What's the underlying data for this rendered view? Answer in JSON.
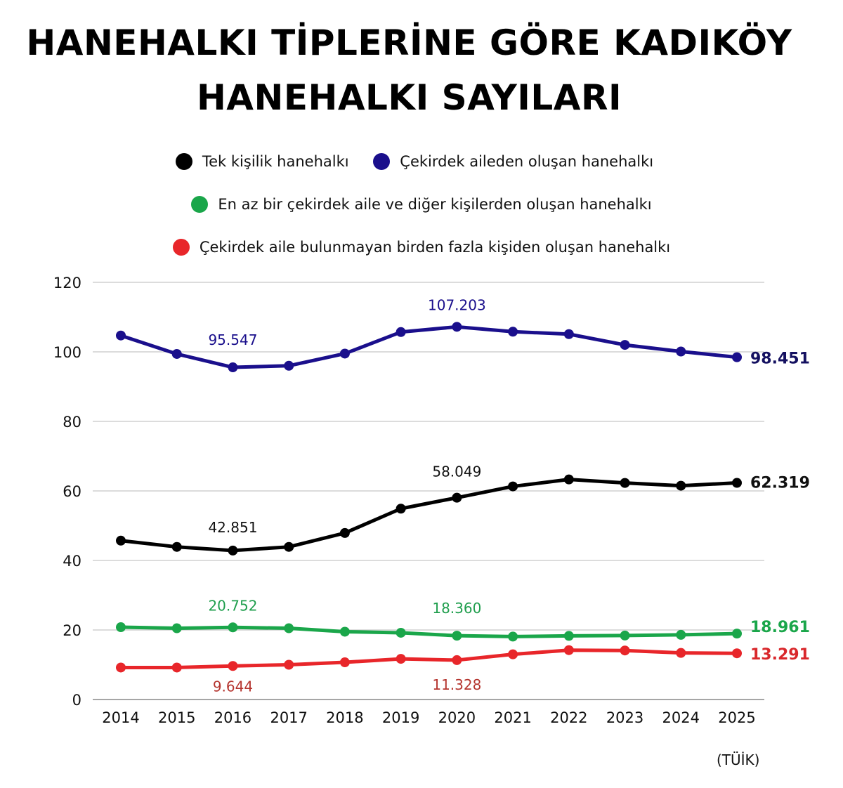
{
  "title_line1": "HANEHALKI TİPLERİNE GÖRE KADIKÖY",
  "title_line2": "HANEHALKI SAYILARI",
  "source": "(TÜİK)",
  "chart_data": {
    "type": "line",
    "title": "HANEHALKI TİPLERİNE GÖRE KADIKÖY HANEHALKI SAYILARI",
    "xlabel": "",
    "ylabel": "",
    "x": [
      2014,
      2015,
      2016,
      2017,
      2018,
      2019,
      2020,
      2021,
      2022,
      2023,
      2024,
      2025
    ],
    "y_ticks": [
      0,
      20,
      40,
      60,
      80,
      100,
      120
    ],
    "ylim": [
      0,
      120
    ],
    "grid": "horizontal",
    "legend_position": "top",
    "series": [
      {
        "name": "Tek kişilik hanehalkı",
        "color": "#000000",
        "values": [
          45.7,
          43.9,
          42.851,
          43.9,
          47.9,
          54.9,
          58.049,
          61.3,
          63.3,
          62.3,
          61.5,
          62.319
        ],
        "annotations": [
          {
            "x": 2016,
            "label": "42.851"
          },
          {
            "x": 2020,
            "label": "58.049"
          }
        ],
        "end_label": "62.319"
      },
      {
        "name": "Çekirdek aileden oluşan hanehalkı",
        "color": "#1a0f8c",
        "values": [
          104.7,
          99.4,
          95.547,
          96.0,
          99.5,
          105.7,
          107.203,
          105.8,
          105.1,
          102.0,
          100.1,
          98.451
        ],
        "annotations": [
          {
            "x": 2016,
            "label": "95.547"
          },
          {
            "x": 2020,
            "label": "107.203"
          }
        ],
        "end_label": "98.451"
      },
      {
        "name": "En az bir çekirdek aile ve diğer kişilerden oluşan hanehalkı",
        "color": "#1aa64a",
        "values": [
          20.8,
          20.5,
          20.752,
          20.5,
          19.5,
          19.2,
          18.36,
          18.1,
          18.3,
          18.4,
          18.6,
          18.961
        ],
        "annotations": [
          {
            "x": 2016,
            "label": "20.752"
          },
          {
            "x": 2020,
            "label": "18.360"
          }
        ],
        "end_label": "18.961"
      },
      {
        "name": "Çekirdek aile bulunmayan birden fazla kişiden oluşan hanehalkı",
        "color": "#e8262a",
        "values": [
          9.2,
          9.2,
          9.644,
          10.0,
          10.7,
          11.7,
          11.328,
          13.0,
          14.2,
          14.1,
          13.4,
          13.291
        ],
        "annotations": [
          {
            "x": 2016,
            "label": "9.644"
          },
          {
            "x": 2020,
            "label": "11.328"
          }
        ],
        "end_label": "13.291"
      }
    ]
  },
  "colors": {
    "grid": "#c8c8c8",
    "axis": "#888888",
    "annotation_black": "#111111",
    "annotation_blue": "#1a0f8c",
    "annotation_green": "#1f9e4d",
    "annotation_red": "#b5352f",
    "end_blue": "#141060",
    "end_black": "#111111",
    "end_green": "#1aa64a",
    "end_red": "#d9272b"
  }
}
